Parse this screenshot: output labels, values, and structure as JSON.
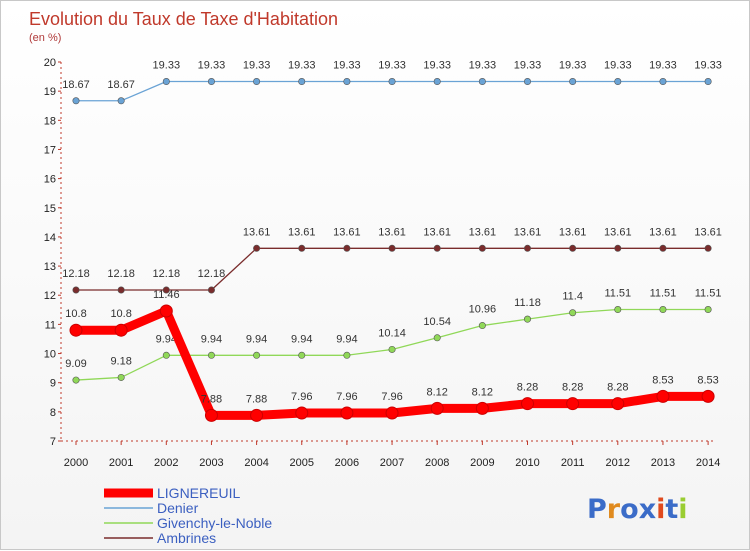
{
  "chart_data": {
    "type": "line",
    "title": "Evolution du Taux de Taxe d'Habitation",
    "subtitle": "(en %)",
    "categories": [
      "2000",
      "2001",
      "2002",
      "2003",
      "2004",
      "2005",
      "2006",
      "2007",
      "2008",
      "2009",
      "2010",
      "2011",
      "2012",
      "2013",
      "2014"
    ],
    "ylim": [
      7,
      20
    ],
    "yticks": [
      7,
      8,
      9,
      10,
      11,
      12,
      13,
      14,
      15,
      16,
      17,
      18,
      19,
      20
    ],
    "grid": false,
    "legend_position": "bottom-left",
    "series": [
      {
        "name": "LIGNEREUIL",
        "color": "#ff0000",
        "values": [
          10.8,
          10.8,
          11.46,
          7.88,
          7.88,
          7.96,
          7.96,
          7.96,
          8.12,
          8.12,
          8.28,
          8.28,
          8.28,
          8.53,
          8.53
        ],
        "labels": [
          "10.8",
          "10.8",
          "11.46",
          "7.88",
          "7.88",
          "7.96",
          "7.96",
          "7.96",
          "8.12",
          "8.12",
          "8.28",
          "8.28",
          "8.28",
          "8.53",
          "8.53"
        ]
      },
      {
        "name": "Denier",
        "color": "#6aa3d5",
        "values": [
          18.67,
          18.67,
          19.33,
          19.33,
          19.33,
          19.33,
          19.33,
          19.33,
          19.33,
          19.33,
          19.33,
          19.33,
          19.33,
          19.33,
          19.33
        ],
        "labels": [
          "18.67",
          "18.67",
          "19.33",
          "19.33",
          "19.33",
          "19.33",
          "19.33",
          "19.33",
          "19.33",
          "19.33",
          "19.33",
          "19.33",
          "19.33",
          "19.33",
          "19.33"
        ]
      },
      {
        "name": "Givenchy-le-Noble",
        "color": "#90d858",
        "values": [
          9.09,
          9.18,
          9.94,
          9.94,
          9.94,
          9.94,
          9.94,
          10.14,
          10.54,
          10.96,
          11.18,
          11.4,
          11.51,
          11.51,
          11.51
        ],
        "labels": [
          "9.09",
          "9.18",
          "9.94",
          "9.94",
          "9.94",
          "9.94",
          "9.94",
          "10.14",
          "10.54",
          "10.96",
          "11.18",
          "11.4",
          "11.51",
          "11.51",
          "11.51"
        ]
      },
      {
        "name": "Ambrines",
        "color": "#7a2c2c",
        "values": [
          12.18,
          12.18,
          12.18,
          12.18,
          13.61,
          13.61,
          13.61,
          13.61,
          13.61,
          13.61,
          13.61,
          13.61,
          13.61,
          13.61,
          13.61
        ],
        "labels": [
          "12.18",
          "12.18",
          "12.18",
          "12.18",
          "13.61",
          "13.61",
          "13.61",
          "13.61",
          "13.61",
          "13.61",
          "13.61",
          "13.61",
          "13.61",
          "13.61",
          "13.61"
        ]
      }
    ]
  },
  "legend": {
    "items": [
      {
        "label": "LIGNEREUIL",
        "color": "#ff0000"
      },
      {
        "label": "Denier",
        "color": "#6aa3d5"
      },
      {
        "label": "Givenchy-le-Noble",
        "color": "#90d858"
      },
      {
        "label": "Ambrines",
        "color": "#7a2c2c"
      }
    ],
    "text_color": "#3b5fc0"
  },
  "logo": {
    "text": "Proxiti",
    "letter_colors": [
      "#3b6cc8",
      "#e08a1e",
      "#3b6cc8",
      "#3b6cc8",
      "#e04a1e",
      "#3b6cc8",
      "#9acd32"
    ]
  }
}
